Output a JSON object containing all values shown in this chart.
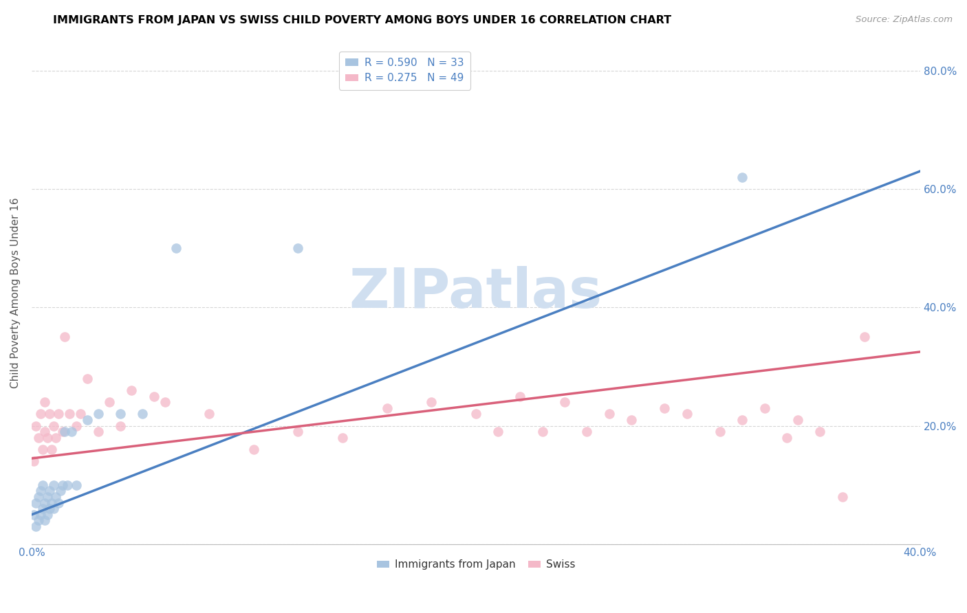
{
  "title": "IMMIGRANTS FROM JAPAN VS SWISS CHILD POVERTY AMONG BOYS UNDER 16 CORRELATION CHART",
  "source": "Source: ZipAtlas.com",
  "ylabel": "Child Poverty Among Boys Under 16",
  "xlim": [
    0.0,
    0.4
  ],
  "ylim": [
    0.0,
    0.85
  ],
  "ytick_positions": [
    0.0,
    0.2,
    0.4,
    0.6,
    0.8
  ],
  "ytick_labels_right": [
    "",
    "20.0%",
    "40.0%",
    "60.0%",
    "80.0%"
  ],
  "xtick_positions": [
    0.0,
    0.05,
    0.1,
    0.15,
    0.2,
    0.25,
    0.3,
    0.35,
    0.4
  ],
  "xtick_labels": [
    "0.0%",
    "",
    "",
    "",
    "",
    "",
    "",
    "",
    "40.0%"
  ],
  "legend_r1": "R = 0.590",
  "legend_n1": "N = 33",
  "legend_r2": "R = 0.275",
  "legend_n2": "N = 49",
  "color_japan": "#a8c4e0",
  "color_swiss": "#f4b8c8",
  "line_color_japan": "#4a7fc1",
  "line_color_swiss": "#d9607a",
  "watermark_color": "#d0dff0",
  "japan_x": [
    0.001,
    0.002,
    0.002,
    0.003,
    0.003,
    0.004,
    0.004,
    0.005,
    0.005,
    0.006,
    0.006,
    0.007,
    0.007,
    0.008,
    0.008,
    0.009,
    0.01,
    0.01,
    0.011,
    0.012,
    0.013,
    0.014,
    0.015,
    0.016,
    0.018,
    0.02,
    0.025,
    0.03,
    0.04,
    0.05,
    0.065,
    0.12,
    0.32
  ],
  "japan_y": [
    0.05,
    0.03,
    0.07,
    0.04,
    0.08,
    0.05,
    0.09,
    0.06,
    0.1,
    0.04,
    0.07,
    0.05,
    0.08,
    0.06,
    0.09,
    0.07,
    0.06,
    0.1,
    0.08,
    0.07,
    0.09,
    0.1,
    0.19,
    0.1,
    0.19,
    0.1,
    0.21,
    0.22,
    0.22,
    0.22,
    0.5,
    0.5,
    0.62
  ],
  "swiss_x": [
    0.001,
    0.002,
    0.003,
    0.004,
    0.005,
    0.006,
    0.006,
    0.007,
    0.008,
    0.009,
    0.01,
    0.011,
    0.012,
    0.014,
    0.015,
    0.017,
    0.02,
    0.022,
    0.025,
    0.03,
    0.035,
    0.04,
    0.045,
    0.055,
    0.06,
    0.08,
    0.1,
    0.12,
    0.14,
    0.16,
    0.18,
    0.2,
    0.21,
    0.22,
    0.23,
    0.24,
    0.25,
    0.26,
    0.27,
    0.285,
    0.295,
    0.31,
    0.32,
    0.33,
    0.34,
    0.345,
    0.355,
    0.365,
    0.375
  ],
  "swiss_y": [
    0.14,
    0.2,
    0.18,
    0.22,
    0.16,
    0.19,
    0.24,
    0.18,
    0.22,
    0.16,
    0.2,
    0.18,
    0.22,
    0.19,
    0.35,
    0.22,
    0.2,
    0.22,
    0.28,
    0.19,
    0.24,
    0.2,
    0.26,
    0.25,
    0.24,
    0.22,
    0.16,
    0.19,
    0.18,
    0.23,
    0.24,
    0.22,
    0.19,
    0.25,
    0.19,
    0.24,
    0.19,
    0.22,
    0.21,
    0.23,
    0.22,
    0.19,
    0.21,
    0.23,
    0.18,
    0.21,
    0.19,
    0.08,
    0.35
  ],
  "japan_line_x0": 0.0,
  "japan_line_y0": 0.05,
  "japan_line_x1": 0.4,
  "japan_line_y1": 0.63,
  "swiss_line_x0": 0.0,
  "swiss_line_y0": 0.145,
  "swiss_line_x1": 0.4,
  "swiss_line_y1": 0.325
}
